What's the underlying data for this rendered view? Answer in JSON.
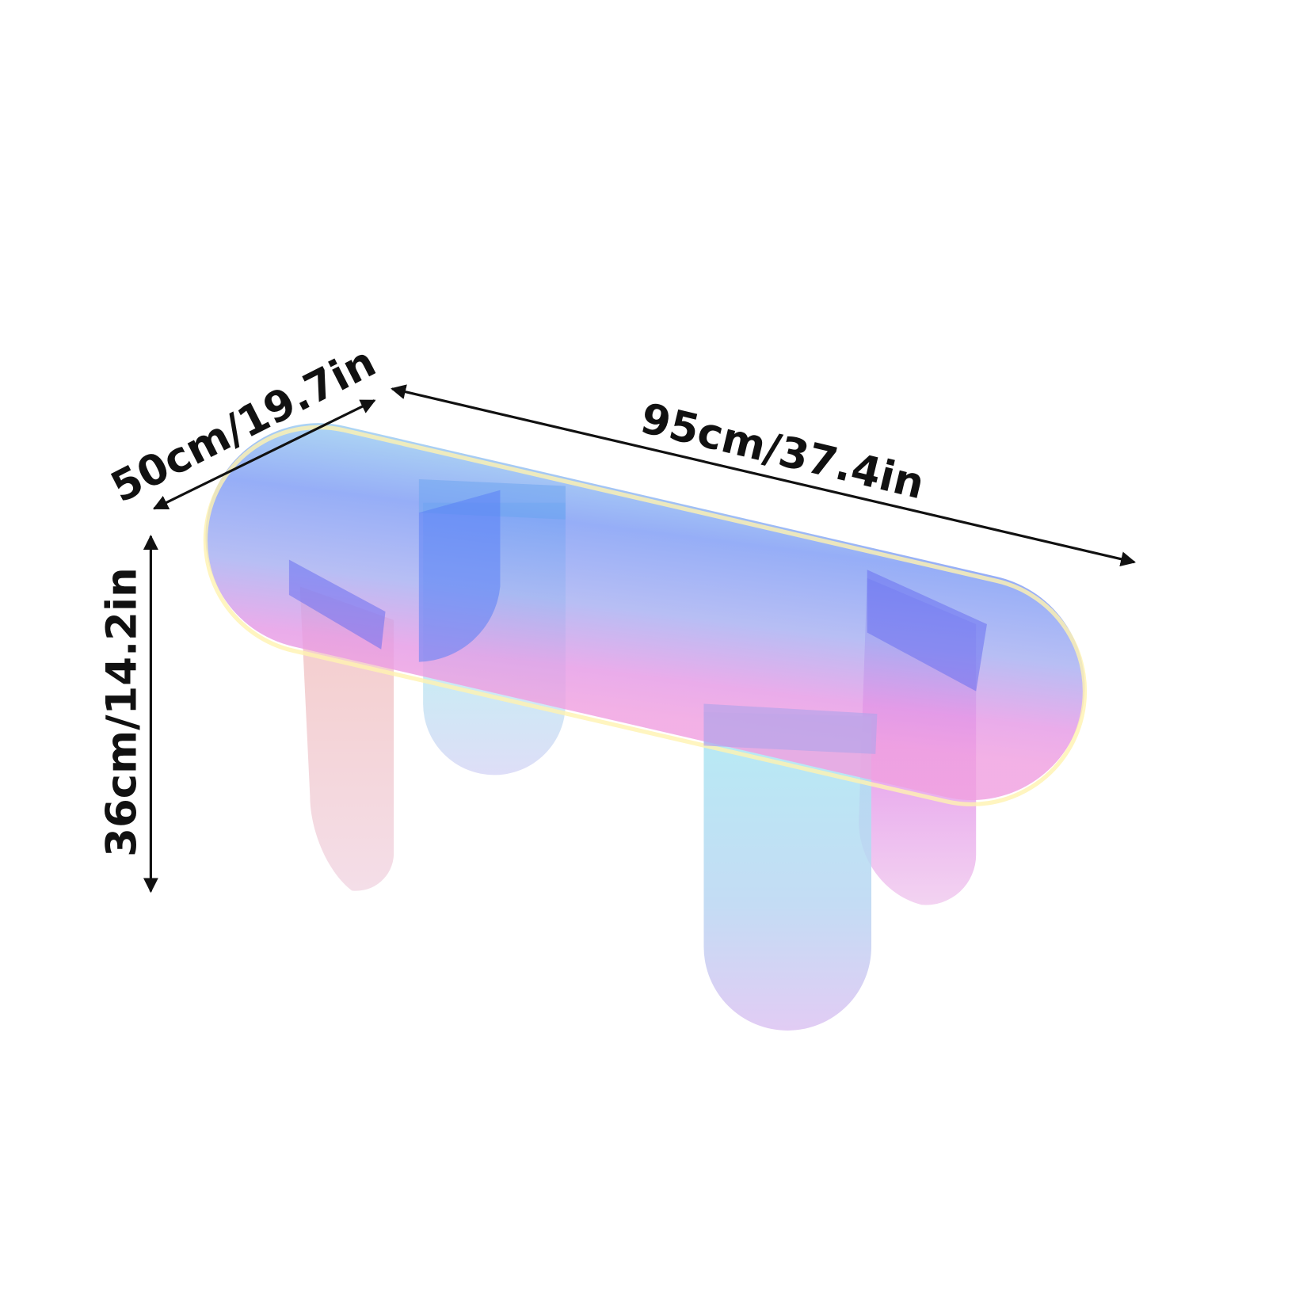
{
  "dimensions": {
    "width_label": "50cm/19.7in",
    "length_label": "95cm/37.4in",
    "height_label": "36cm/14.2in"
  },
  "colors": {
    "text": "#111111",
    "arrow": "#111111",
    "iridescent_blue": "#6f8ff5",
    "iridescent_cyan": "#6fd6f5",
    "iridescent_pink": "#e88ae8",
    "iridescent_yellow": "#fff6b0"
  }
}
